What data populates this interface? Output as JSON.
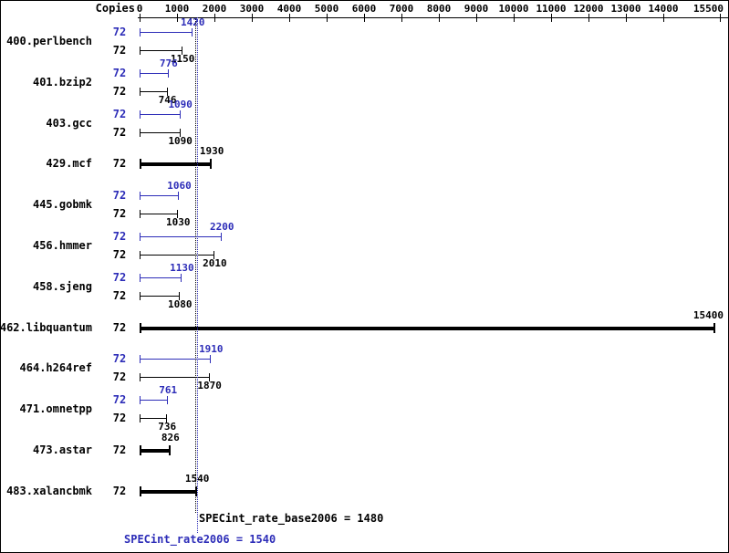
{
  "colors": {
    "peak_blue": "#2d2db8",
    "base_black": "#000000",
    "background": "#ffffff"
  },
  "chart_data": {
    "type": "bar",
    "orientation": "horizontal",
    "copies_label": "Copies",
    "xlim": [
      0,
      15500
    ],
    "x_ticks": [
      0,
      1000,
      2000,
      3000,
      4000,
      5000,
      6000,
      7000,
      8000,
      9000,
      10000,
      11000,
      12000,
      13000,
      14000,
      15500
    ],
    "benchmarks": [
      {
        "name": "400.perlbench",
        "rows": [
          {
            "type": "peak",
            "copies": "72",
            "value": 1420
          },
          {
            "type": "base",
            "copies": "72",
            "value": 1150
          }
        ]
      },
      {
        "name": "401.bzip2",
        "rows": [
          {
            "type": "peak",
            "copies": "72",
            "value": 776
          },
          {
            "type": "base",
            "copies": "72",
            "value": 746
          }
        ]
      },
      {
        "name": "403.gcc",
        "rows": [
          {
            "type": "peak",
            "copies": "72",
            "value": 1090
          },
          {
            "type": "base",
            "copies": "72",
            "value": 1090
          }
        ]
      },
      {
        "name": "429.mcf",
        "rows": [
          {
            "type": "single",
            "copies": "72",
            "value": 1930
          }
        ]
      },
      {
        "name": "445.gobmk",
        "rows": [
          {
            "type": "peak",
            "copies": "72",
            "value": 1060
          },
          {
            "type": "base",
            "copies": "72",
            "value": 1030
          }
        ]
      },
      {
        "name": "456.hmmer",
        "rows": [
          {
            "type": "peak",
            "copies": "72",
            "value": 2200
          },
          {
            "type": "base",
            "copies": "72",
            "value": 2010
          }
        ]
      },
      {
        "name": "458.sjeng",
        "rows": [
          {
            "type": "peak",
            "copies": "72",
            "value": 1130
          },
          {
            "type": "base",
            "copies": "72",
            "value": 1080
          }
        ]
      },
      {
        "name": "462.libquantum",
        "rows": [
          {
            "type": "single",
            "copies": "72",
            "value": 15400
          }
        ]
      },
      {
        "name": "464.h264ref",
        "rows": [
          {
            "type": "peak",
            "copies": "72",
            "value": 1910
          },
          {
            "type": "base",
            "copies": "72",
            "value": 1870
          }
        ]
      },
      {
        "name": "471.omnetpp",
        "rows": [
          {
            "type": "peak",
            "copies": "72",
            "value": 761
          },
          {
            "type": "base",
            "copies": "72",
            "value": 736
          }
        ]
      },
      {
        "name": "473.astar",
        "rows": [
          {
            "type": "single",
            "copies": "72",
            "value": 826
          }
        ]
      },
      {
        "name": "483.xalancbmk",
        "rows": [
          {
            "type": "single",
            "copies": "72",
            "value": 1540
          }
        ]
      }
    ],
    "summary": {
      "base_label": "SPECint_rate_base2006 = 1480",
      "base_value": 1480,
      "peak_label": "SPECint_rate2006 = 1540",
      "peak_value": 1540
    }
  }
}
